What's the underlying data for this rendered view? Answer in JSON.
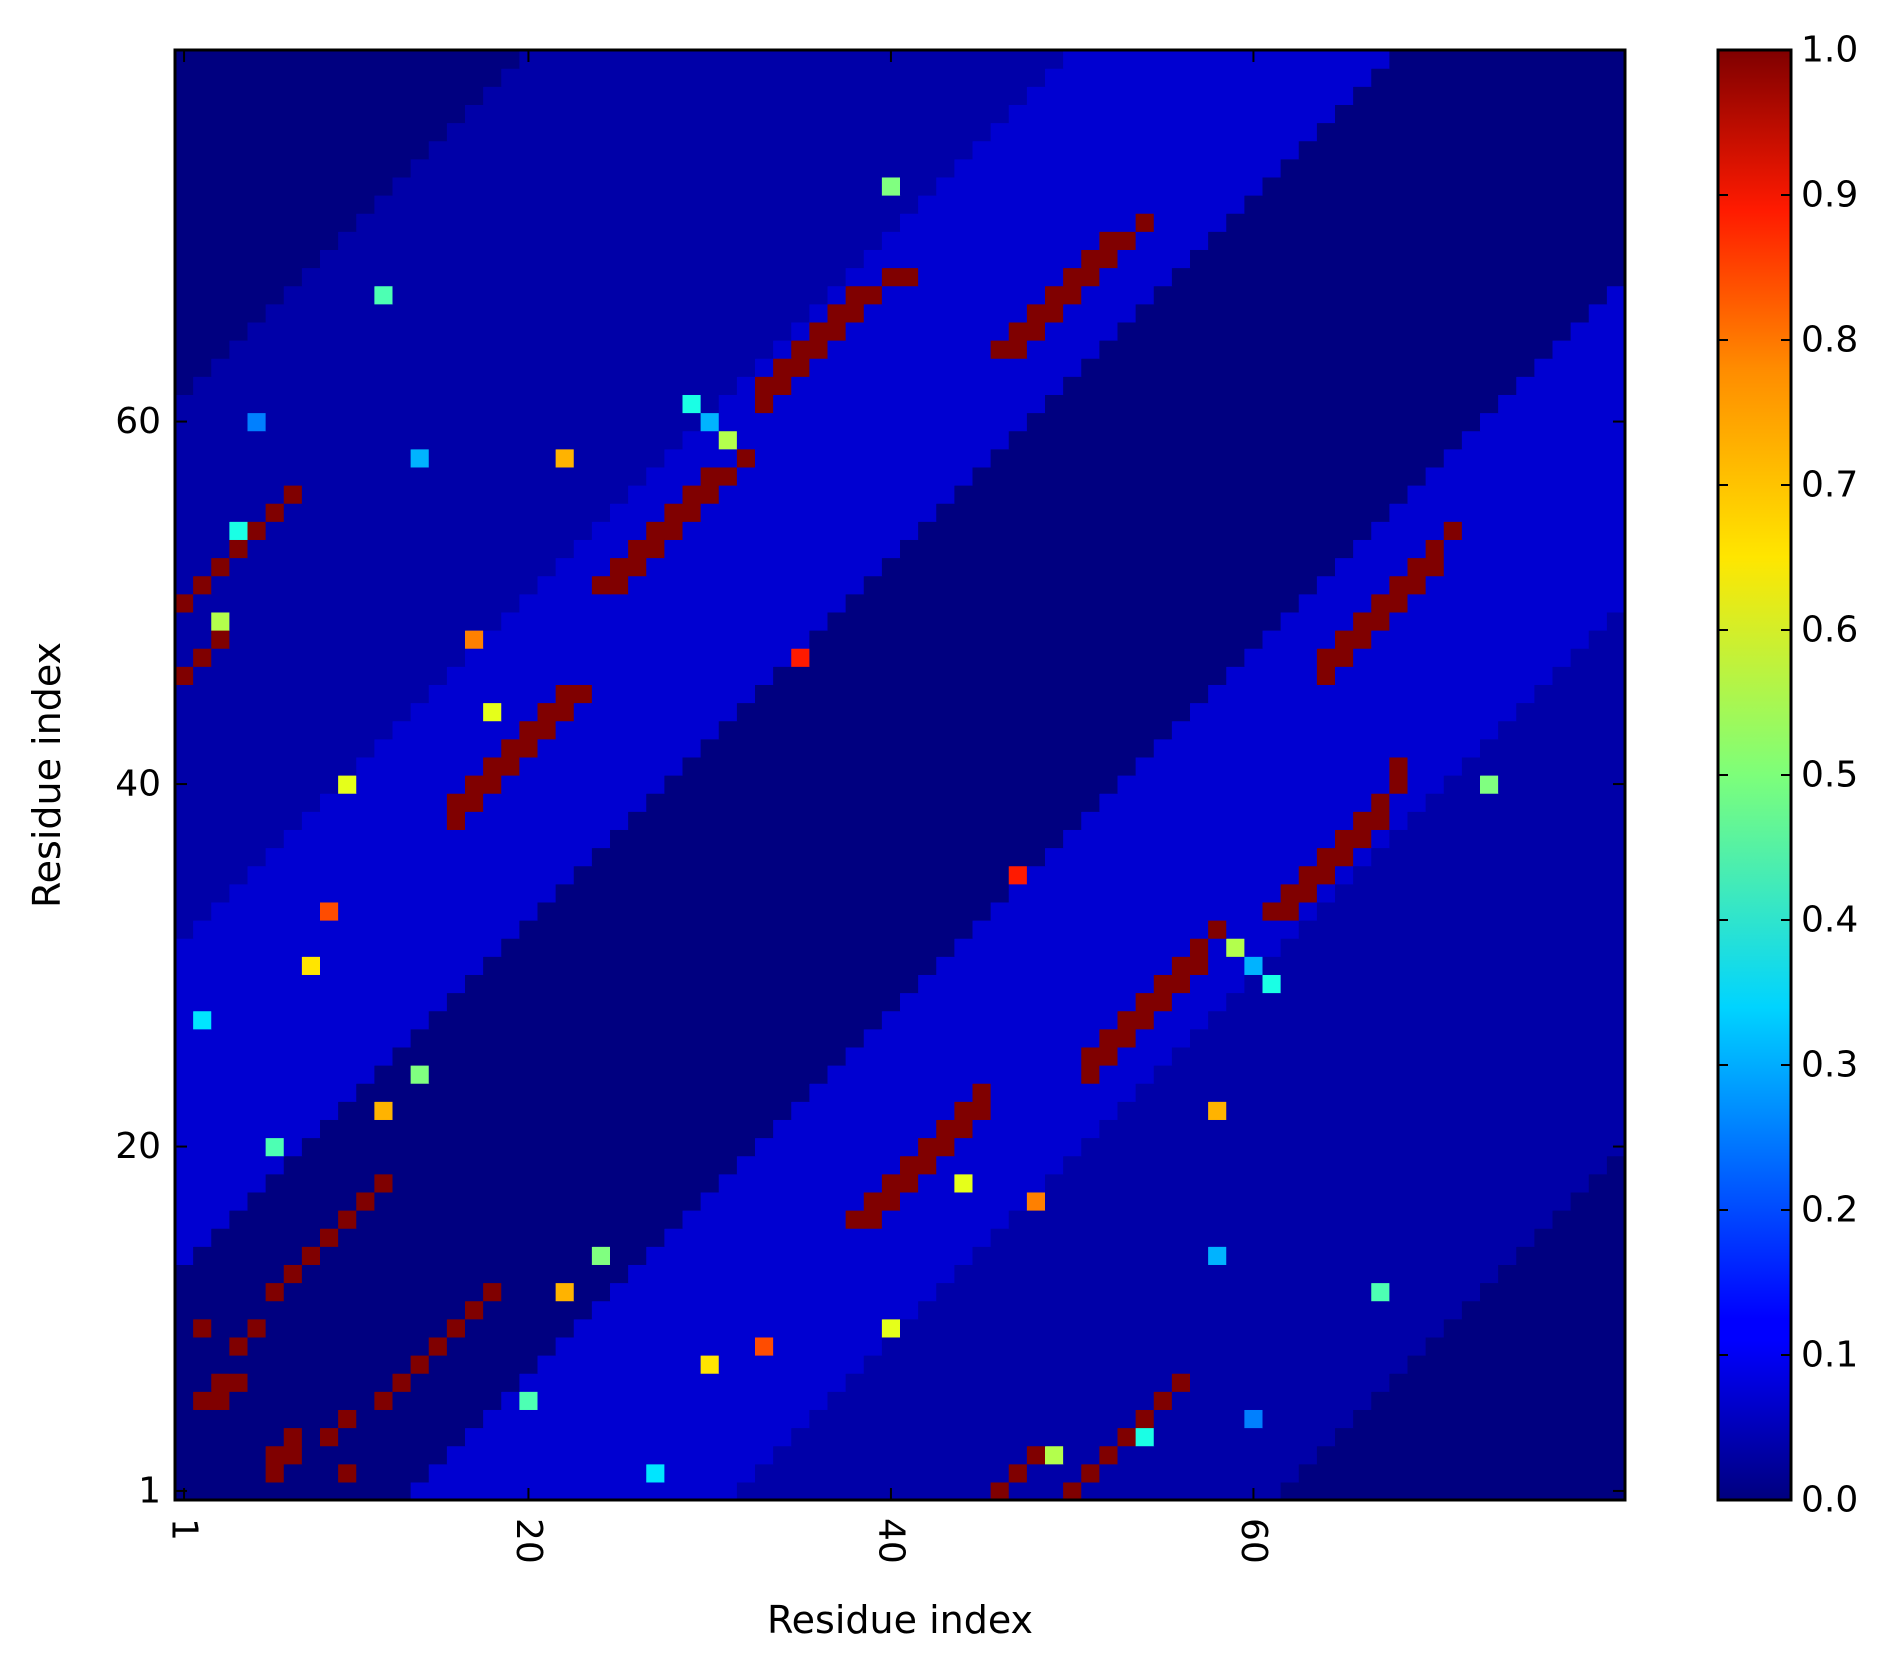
{
  "chart_data": {
    "type": "heatmap",
    "title": "",
    "xlabel": "Residue index",
    "ylabel": "Residue index",
    "n": 80,
    "x_ticks": [
      "1",
      "20",
      "40",
      "60"
    ],
    "y_ticks": [
      "1",
      "20",
      "40",
      "60"
    ],
    "colorbar": {
      "ticks": [
        "0.0",
        "0.1",
        "0.2",
        "0.3",
        "0.4",
        "0.5",
        "0.6",
        "0.7",
        "0.8",
        "0.9",
        "1.0"
      ],
      "range": [
        0.0,
        1.0
      ],
      "colormap": "jet"
    },
    "background_levels": {
      "diagonal_band_half_width": 12,
      "inner_value": 0.0,
      "band_value": 0.08,
      "outer_value": 0.04,
      "corner_value": 0.0
    },
    "high_contacts": [
      [
        16,
        38
      ],
      [
        16,
        39
      ],
      [
        17,
        39
      ],
      [
        17,
        40
      ],
      [
        18,
        40
      ],
      [
        18,
        41
      ],
      [
        19,
        41
      ],
      [
        19,
        42
      ],
      [
        20,
        42
      ],
      [
        20,
        43
      ],
      [
        21,
        43
      ],
      [
        21,
        44
      ],
      [
        22,
        44
      ],
      [
        22,
        45
      ],
      [
        23,
        45
      ],
      [
        33,
        61
      ],
      [
        33,
        62
      ],
      [
        34,
        62
      ],
      [
        34,
        63
      ],
      [
        35,
        63
      ],
      [
        35,
        64
      ],
      [
        36,
        64
      ],
      [
        36,
        65
      ],
      [
        37,
        65
      ],
      [
        37,
        66
      ],
      [
        38,
        66
      ],
      [
        38,
        67
      ],
      [
        39,
        67
      ],
      [
        40,
        68
      ],
      [
        41,
        68
      ],
      [
        24,
        51
      ],
      [
        25,
        51
      ],
      [
        25,
        52
      ],
      [
        26,
        52
      ],
      [
        26,
        53
      ],
      [
        27,
        53
      ],
      [
        27,
        54
      ],
      [
        28,
        54
      ],
      [
        28,
        55
      ],
      [
        29,
        55
      ],
      [
        29,
        56
      ],
      [
        30,
        56
      ],
      [
        30,
        57
      ],
      [
        31,
        57
      ],
      [
        32,
        58
      ],
      [
        46,
        64
      ],
      [
        47,
        64
      ],
      [
        47,
        65
      ],
      [
        48,
        65
      ],
      [
        48,
        66
      ],
      [
        49,
        66
      ],
      [
        49,
        67
      ],
      [
        50,
        67
      ],
      [
        50,
        68
      ],
      [
        51,
        68
      ],
      [
        51,
        69
      ],
      [
        52,
        69
      ],
      [
        52,
        70
      ],
      [
        53,
        70
      ],
      [
        54,
        71
      ],
      [
        2,
        6
      ],
      [
        3,
        6
      ],
      [
        3,
        7
      ],
      [
        4,
        7
      ],
      [
        2,
        10
      ],
      [
        5,
        10
      ],
      [
        4,
        9
      ],
      [
        6,
        12
      ],
      [
        7,
        13
      ],
      [
        8,
        14
      ],
      [
        9,
        15
      ],
      [
        10,
        16
      ],
      [
        11,
        17
      ],
      [
        12,
        18
      ],
      [
        1,
        50
      ],
      [
        2,
        51
      ],
      [
        3,
        52
      ],
      [
        4,
        53
      ],
      [
        5,
        54
      ],
      [
        1,
        46
      ],
      [
        2,
        47
      ],
      [
        3,
        48
      ],
      [
        6,
        55
      ],
      [
        7,
        56
      ]
    ],
    "mid_contacts": [
      [
        17,
        48,
        0.75
      ],
      [
        3,
        49,
        0.55
      ],
      [
        10,
        40,
        0.6
      ],
      [
        4,
        54,
        0.4
      ],
      [
        18,
        44,
        0.6
      ],
      [
        2,
        27,
        0.35
      ],
      [
        12,
        22,
        0.7
      ],
      [
        8,
        30,
        0.65
      ],
      [
        6,
        20,
        0.45
      ],
      [
        14,
        24,
        0.5
      ],
      [
        29,
        61,
        0.4
      ],
      [
        30,
        60,
        0.3
      ],
      [
        31,
        59,
        0.55
      ],
      [
        5,
        60,
        0.25
      ],
      [
        35,
        47,
        0.85
      ],
      [
        22,
        58,
        0.7
      ],
      [
        40,
        73,
        0.5
      ],
      [
        12,
        67,
        0.45
      ],
      [
        14,
        58,
        0.3
      ],
      [
        9,
        33,
        0.8
      ]
    ]
  }
}
